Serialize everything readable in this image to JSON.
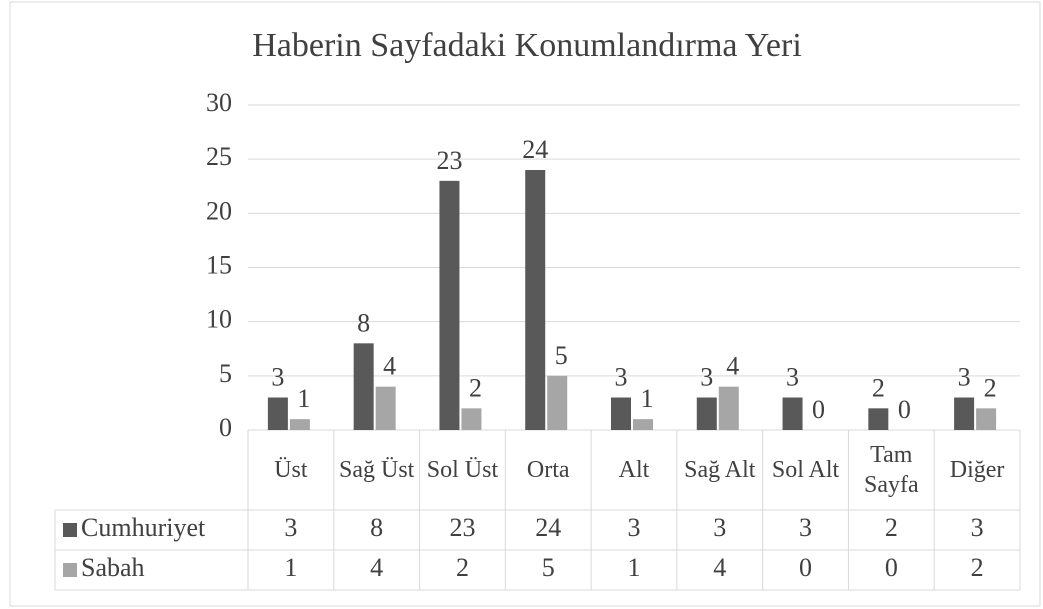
{
  "chart_data": {
    "type": "bar",
    "title": "Haberin Sayfadaki Konumlandırma Yeri",
    "categories": [
      "Üst",
      "Sağ Üst",
      "Sol Üst",
      "Orta",
      "Alt",
      "Sağ Alt",
      "Sol Alt",
      "Tam Sayfa",
      "Diğer"
    ],
    "series": [
      {
        "name": "Cumhuriyet",
        "color": "#595959",
        "values": [
          3,
          8,
          23,
          24,
          3,
          3,
          3,
          2,
          3
        ]
      },
      {
        "name": "Sabah",
        "color": "#a6a6a6",
        "values": [
          1,
          4,
          2,
          5,
          1,
          4,
          0,
          0,
          2
        ]
      }
    ],
    "ylim": [
      0,
      30
    ],
    "yticks": [
      0,
      5,
      10,
      15,
      20,
      25,
      30
    ],
    "grid": true,
    "data_table": true
  }
}
